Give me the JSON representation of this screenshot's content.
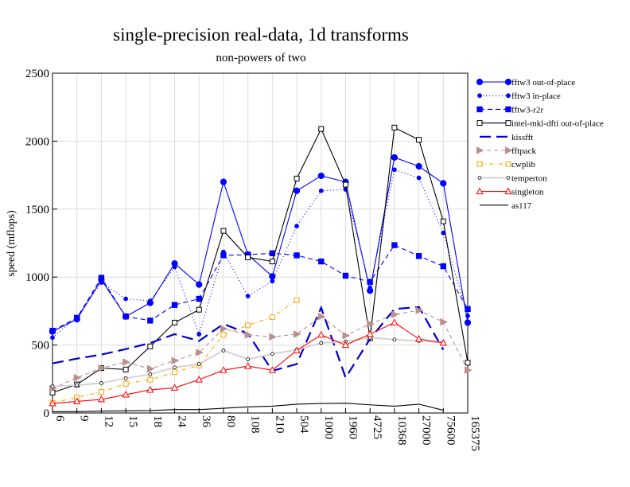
{
  "chart_data": {
    "type": "line",
    "title": "single-precision real-data, 1d transforms",
    "subtitle": "non-powers of two",
    "xlabel": "",
    "ylabel": "speed (mflops)",
    "ylim": [
      0,
      2500
    ],
    "yticks": [
      0,
      500,
      1000,
      1500,
      2000,
      2500
    ],
    "categories": [
      "6",
      "9",
      "12",
      "15",
      "18",
      "24",
      "36",
      "80",
      "108",
      "210",
      "504",
      "1000",
      "1960",
      "4725",
      "10368",
      "27000",
      "75600",
      "165375"
    ],
    "grid": true,
    "legend_position": "right",
    "series": [
      {
        "name": "fftw3 out-of-place",
        "color": "#0000ff",
        "dash": "",
        "marker": "circle-filled",
        "values": [
          600,
          690,
          980,
          710,
          810,
          1100,
          945,
          1700,
          1165,
          1005,
          1635,
          1745,
          1700,
          900,
          1880,
          1815,
          1690,
          665
        ]
      },
      {
        "name": "fftw3 in-place",
        "color": "#0000ff",
        "dash": "1,3",
        "marker": "dot-filled",
        "values": [
          555,
          705,
          960,
          840,
          825,
          1075,
          580,
          1185,
          860,
          970,
          1375,
          1635,
          1645,
          920,
          1790,
          1730,
          1325,
          715
        ]
      },
      {
        "name": "fftw3-r2r",
        "color": "#0000ff",
        "dash": "6,4",
        "marker": "square-filled",
        "values": [
          605,
          700,
          995,
          710,
          680,
          795,
          840,
          1160,
          1165,
          1175,
          1160,
          1115,
          1010,
          965,
          1235,
          1155,
          1080,
          765
        ]
      },
      {
        "name": "intel-mkl-dfti out-of-place",
        "color": "#000000",
        "dash": "",
        "marker": "square-open",
        "values": [
          150,
          210,
          330,
          320,
          490,
          665,
          760,
          1340,
          1145,
          1115,
          1725,
          2090,
          1680,
          550,
          2100,
          2010,
          1410,
          370
        ]
      },
      {
        "name": "kissfft",
        "color": "#0000cc",
        "dash": "14,7",
        "marker": "none",
        "width": 2.2,
        "values": [
          365,
          400,
          430,
          470,
          515,
          580,
          530,
          655,
          585,
          310,
          360,
          775,
          260,
          545,
          765,
          780,
          465,
          null
        ]
      },
      {
        "name": "fftpack",
        "color": "#bc8f8f",
        "dash": "5,4",
        "marker": "triangle-right",
        "values": [
          180,
          260,
          330,
          375,
          325,
          385,
          445,
          620,
          575,
          560,
          580,
          710,
          570,
          655,
          725,
          755,
          670,
          315
        ]
      },
      {
        "name": "cwplib",
        "color": "#ffa500",
        "dash": "5,3,1,3",
        "marker": "square-open",
        "values": [
          75,
          115,
          155,
          215,
          245,
          300,
          350,
          575,
          645,
          705,
          830,
          null,
          null,
          null,
          null,
          null,
          null,
          null
        ]
      },
      {
        "name": "temperton",
        "color": "#d3d3d3",
        "dash": "",
        "marker": "circle-open",
        "width": 2,
        "values": [
          195,
          205,
          220,
          255,
          285,
          335,
          360,
          460,
          395,
          435,
          465,
          515,
          525,
          555,
          540,
          530,
          520,
          null
        ]
      },
      {
        "name": "singleton",
        "color": "#ff0000",
        "dash": "",
        "marker": "triangle-open",
        "values": [
          70,
          85,
          100,
          135,
          170,
          185,
          245,
          315,
          345,
          315,
          460,
          575,
          500,
          580,
          665,
          545,
          515,
          null
        ]
      },
      {
        "name": "as117",
        "color": "#000000",
        "dash": "",
        "marker": "none",
        "values": [
          10,
          10,
          14,
          16,
          18,
          25,
          25,
          35,
          45,
          50,
          65,
          70,
          72,
          60,
          50,
          65,
          20,
          null
        ]
      }
    ]
  }
}
